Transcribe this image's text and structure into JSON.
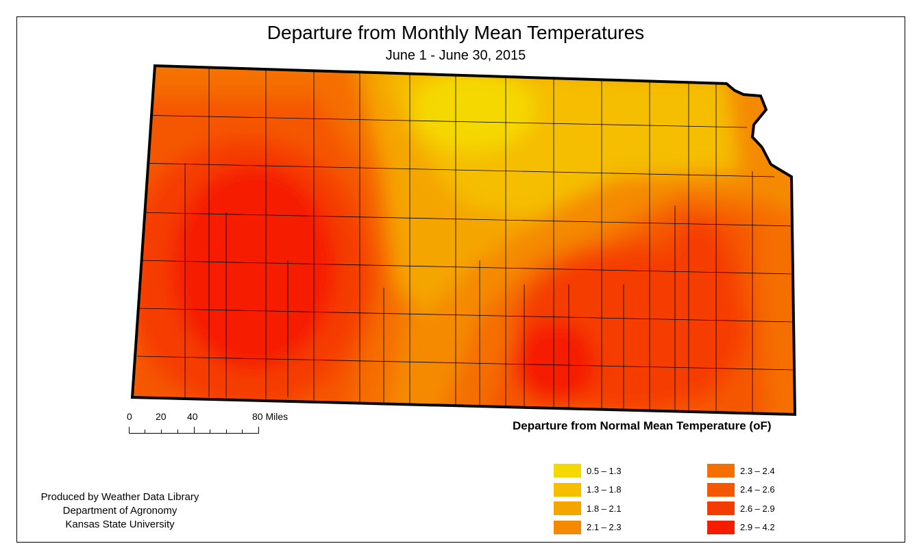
{
  "title": "Departure from Monthly Mean Temperatures",
  "subtitle": "June 1 - June 30, 2015",
  "scale": {
    "labels": [
      "0",
      "20",
      "40",
      "80 Miles"
    ]
  },
  "legend": {
    "title": "Departure from Normal Mean Temperature (oF)",
    "items": [
      {
        "label": "0.5 – 1.3",
        "color": "#F5D800"
      },
      {
        "label": "1.3 – 1.8",
        "color": "#F5BE00"
      },
      {
        "label": "1.8 – 2.1",
        "color": "#F5A500"
      },
      {
        "label": "2.1 – 2.3",
        "color": "#F58A00"
      },
      {
        "label": "2.3 – 2.4",
        "color": "#F56E00"
      },
      {
        "label": "2.4 – 2.6",
        "color": "#F55600"
      },
      {
        "label": "2.6 – 2.9",
        "color": "#F53C00"
      },
      {
        "label": "2.9 – 4.2",
        "color": "#F51C00"
      }
    ]
  },
  "credits": [
    "Produced by Weather Data Library",
    "Department of Agronomy",
    "Kansas State University"
  ]
}
